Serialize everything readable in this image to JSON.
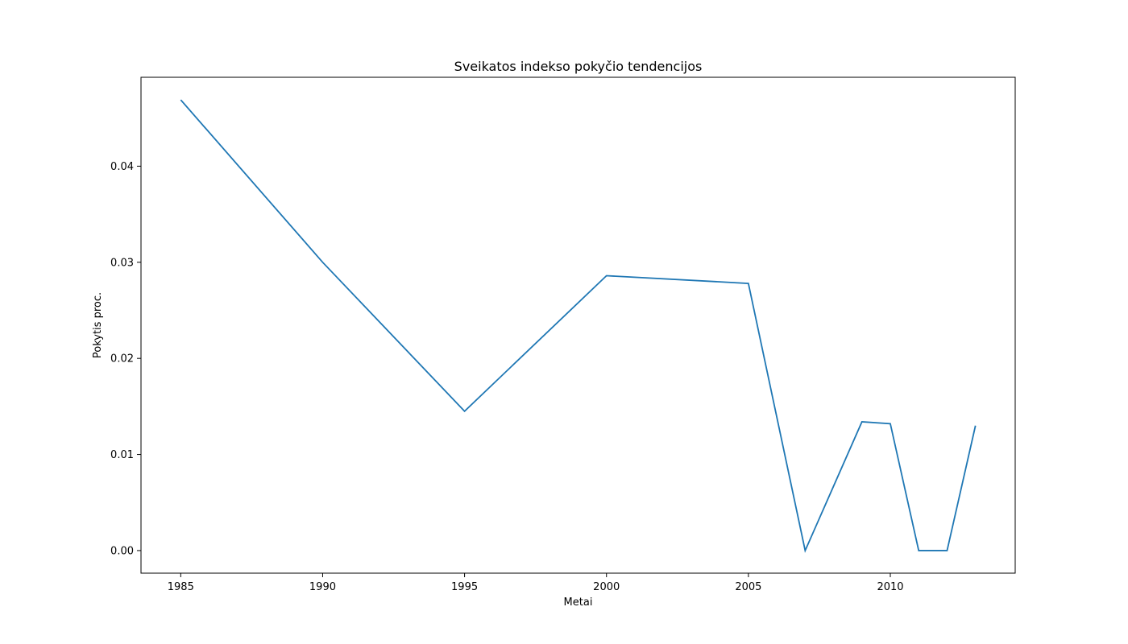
{
  "colors": {
    "line": "#1f77b4",
    "axes": "#000000",
    "background": "#ffffff"
  },
  "chart_data": {
    "type": "line",
    "title": "Sveikatos indekso pokyčio tendencijos",
    "xlabel": "Metai",
    "ylabel": "Pokytis proc.",
    "x": [
      1985,
      1990,
      1995,
      2000,
      2005,
      2007,
      2009,
      2010,
      2011,
      2012,
      2013
    ],
    "series": [
      {
        "values": [
          0.0469,
          0.03,
          0.0145,
          0.0286,
          0.0278,
          0.0,
          0.0134,
          0.0132,
          0.0,
          0.0,
          0.013
        ]
      }
    ],
    "xlim": [
      1983.6,
      2014.4
    ],
    "ylim": [
      -0.00235,
      0.04925
    ],
    "xticks": [
      1985,
      1990,
      1995,
      2000,
      2005,
      2010
    ],
    "xtick_labels": [
      "1985",
      "1990",
      "1995",
      "2000",
      "2005",
      "2010"
    ],
    "yticks": [
      0.0,
      0.01,
      0.02,
      0.03,
      0.04
    ],
    "ytick_labels": [
      "0.00",
      "0.01",
      "0.02",
      "0.03",
      "0.04"
    ],
    "grid": false,
    "legend": "none"
  }
}
